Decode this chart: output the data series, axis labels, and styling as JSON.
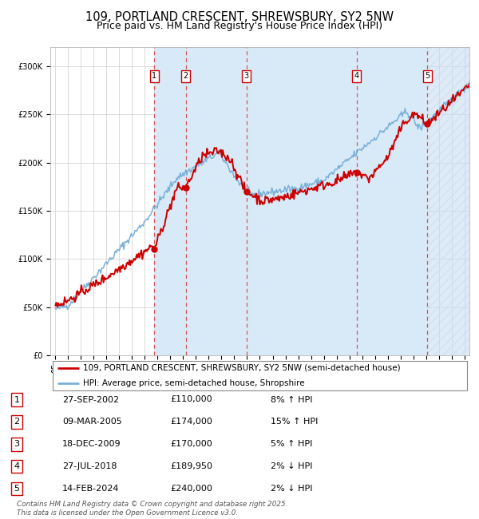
{
  "title": "109, PORTLAND CRESCENT, SHREWSBURY, SY2 5NW",
  "subtitle": "Price paid vs. HM Land Registry's House Price Index (HPI)",
  "legend_line1": "109, PORTLAND CRESCENT, SHREWSBURY, SY2 5NW (semi-detached house)",
  "legend_line2": "HPI: Average price, semi-detached house, Shropshire",
  "footer": "Contains HM Land Registry data © Crown copyright and database right 2025.\nThis data is licensed under the Open Government Licence v3.0.",
  "transactions": [
    {
      "num": 1,
      "date": "27-SEP-2002",
      "price": 110000,
      "pct": "8%",
      "dir": "↑",
      "x_year": 2002.74
    },
    {
      "num": 2,
      "date": "09-MAR-2005",
      "price": 174000,
      "pct": "15%",
      "dir": "↑",
      "x_year": 2005.19
    },
    {
      "num": 3,
      "date": "18-DEC-2009",
      "price": 170000,
      "pct": "5%",
      "dir": "↑",
      "x_year": 2009.96
    },
    {
      "num": 4,
      "date": "27-JUL-2018",
      "price": 189950,
      "pct": "2%",
      "dir": "↓",
      "x_year": 2018.57
    },
    {
      "num": 5,
      "date": "14-FEB-2024",
      "price": 240000,
      "pct": "2%",
      "dir": "↓",
      "x_year": 2024.12
    }
  ],
  "hpi_color": "#7ab0d8",
  "price_color": "#cc0000",
  "dot_color": "#cc0000",
  "vline_color": "#dd4444",
  "shade_color": "#d8eaf8",
  "hatch_color": "#c8ddf0",
  "ylim": [
    0,
    320000
  ],
  "xlim_start": 1994.6,
  "xlim_end": 2027.4,
  "bg_color": "#ffffff",
  "grid_color": "#cccccc",
  "title_fontsize": 10.5,
  "subtitle_fontsize": 9,
  "tick_fontsize": 7,
  "label_fontsize": 8
}
